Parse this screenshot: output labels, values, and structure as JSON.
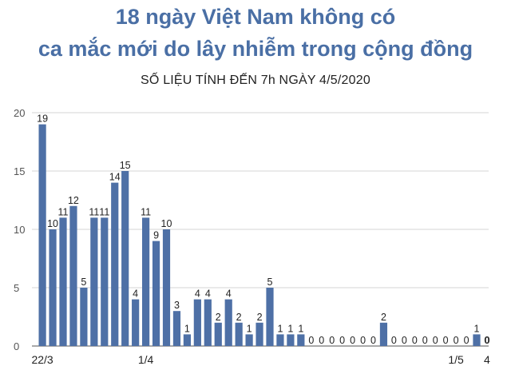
{
  "title_line1": "18 ngày Việt Nam không có",
  "title_line2": "ca mắc mới do lây nhiễm trong cộng đồng",
  "subtitle": "SỐ LIỆU TÍNH ĐẾN 7h NGÀY 4/5/2020",
  "colors": {
    "bar": "#4e70a6",
    "title": "#4a6fa5",
    "grid": "#c9c9c9",
    "text": "#222222"
  },
  "chart_data": {
    "type": "bar",
    "values": [
      19,
      10,
      11,
      12,
      5,
      11,
      11,
      14,
      15,
      4,
      11,
      9,
      10,
      3,
      1,
      4,
      4,
      2,
      4,
      2,
      1,
      2,
      5,
      1,
      1,
      1,
      0,
      0,
      0,
      0,
      0,
      0,
      0,
      2,
      0,
      0,
      0,
      0,
      0,
      0,
      0,
      0,
      1,
      0
    ],
    "data_labels": [
      "19",
      "10",
      "11",
      "12",
      "5",
      "11",
      "11",
      "14",
      "15",
      "4",
      "11",
      "9",
      "10",
      "3",
      "1",
      "4",
      "4",
      "2",
      "4",
      "2",
      "1",
      "2",
      "5",
      "1",
      "1",
      "1",
      "0",
      "0",
      "0",
      "0",
      "0",
      "0",
      "0",
      "2",
      "0",
      "0",
      "0",
      "0",
      "0",
      "0",
      "0",
      "0",
      "1",
      "0"
    ],
    "x_tick_labels": [
      {
        "index": 0,
        "label": "22/3"
      },
      {
        "index": 10,
        "label": "1/4"
      },
      {
        "index": 40,
        "label": "1/5"
      },
      {
        "index": 43,
        "label": "4"
      }
    ],
    "y_ticks": [
      0,
      5,
      10,
      15,
      20
    ],
    "ylim": [
      0,
      20
    ],
    "grid": true
  }
}
